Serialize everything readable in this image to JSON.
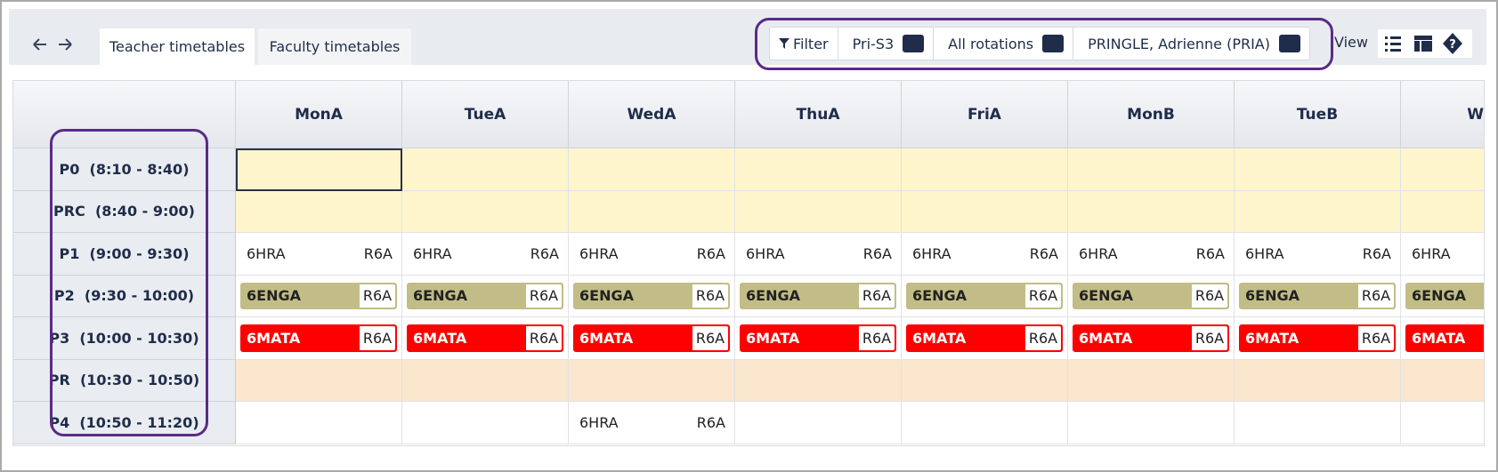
{
  "nav": {
    "tabs": [
      "Teacher timetables",
      "Faculty timetables"
    ]
  },
  "toolbar": {
    "filter": "Filter",
    "selects": [
      "Pri-S3",
      "All rotations",
      "PRINGLE, Adrienne (PRIA)"
    ],
    "view": "View"
  },
  "grid": {
    "columns": [
      "MonA",
      "TueA",
      "WedA",
      "ThuA",
      "FriA",
      "MonB",
      "TueB",
      "W"
    ],
    "periods": [
      {
        "label": "P0  (8:10 - 8:40)",
        "background": "#fff5cc"
      },
      {
        "label": "PRC  (8:40 - 9:00)",
        "background": "#fff5cc"
      },
      {
        "label": "P1  (9:00 - 9:30)",
        "cells": [
          {
            "class": "6HRA",
            "room": "R6A"
          },
          {
            "class": "6HRA",
            "room": "R6A"
          },
          {
            "class": "6HRA",
            "room": "R6A"
          },
          {
            "class": "6HRA",
            "room": "R6A"
          },
          {
            "class": "6HRA",
            "room": "R6A"
          },
          {
            "class": "6HRA",
            "room": "R6A"
          },
          {
            "class": "6HRA",
            "room": "R6A"
          },
          {
            "class": "6HRA"
          }
        ]
      },
      {
        "label": "P2  (9:30 - 10:00)",
        "bar": "#c2bd87",
        "cells": [
          {
            "class": "6ENGA",
            "room": "R6A"
          },
          {
            "class": "6ENGA",
            "room": "R6A"
          },
          {
            "class": "6ENGA",
            "room": "R6A"
          },
          {
            "class": "6ENGA",
            "room": "R6A"
          },
          {
            "class": "6ENGA",
            "room": "R6A"
          },
          {
            "class": "6ENGA",
            "room": "R6A"
          },
          {
            "class": "6ENGA",
            "room": "R6A"
          },
          {
            "class": "6ENGA"
          }
        ]
      },
      {
        "label": "P3  (10:00 - 10:30)",
        "bar": "#ff0000",
        "cells": [
          {
            "class": "6MATA",
            "room": "R6A"
          },
          {
            "class": "6MATA",
            "room": "R6A"
          },
          {
            "class": "6MATA",
            "room": "R6A"
          },
          {
            "class": "6MATA",
            "room": "R6A"
          },
          {
            "class": "6MATA",
            "room": "R6A"
          },
          {
            "class": "6MATA",
            "room": "R6A"
          },
          {
            "class": "6MATA",
            "room": "R6A"
          },
          {
            "class": "6MATA"
          }
        ]
      },
      {
        "label": "PR  (10:30 - 10:50)",
        "background": "#fae7cd"
      },
      {
        "label": "P4  (10:50 - 11:20)",
        "cells": [
          null,
          null,
          {
            "class": "6HRA",
            "room": "R6A"
          },
          null,
          null,
          null,
          null,
          null
        ]
      }
    ]
  }
}
